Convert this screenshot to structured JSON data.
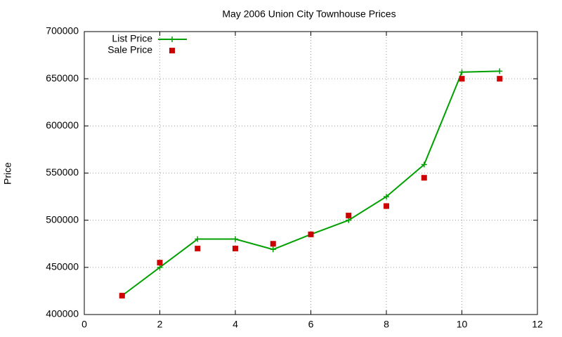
{
  "chart_data": {
    "type": "line",
    "title": "May 2006 Union City Townhouse Prices",
    "y_label": "Price",
    "x": [
      1,
      2,
      3,
      4,
      5,
      6,
      7,
      8,
      9,
      10,
      11
    ],
    "series": [
      {
        "name": "List Price",
        "color": "#00a000",
        "style": "linespoints",
        "values": [
          420000,
          450000,
          480000,
          480000,
          469000,
          485000,
          500000,
          525000,
          559000,
          657000,
          658000
        ]
      },
      {
        "name": "Sale Price",
        "color": "#cc0000",
        "style": "points",
        "values": [
          420000,
          455000,
          470000,
          470000,
          475000,
          485000,
          505000,
          515000,
          545000,
          650000,
          650000
        ]
      }
    ],
    "xlim": [
      0,
      12
    ],
    "xticks": [
      0,
      2,
      4,
      6,
      8,
      10,
      12
    ],
    "ylim": [
      400000,
      700000
    ],
    "yticks": [
      400000,
      450000,
      500000,
      550000,
      600000,
      650000,
      700000
    ],
    "grid": true,
    "legend": "top-left"
  }
}
